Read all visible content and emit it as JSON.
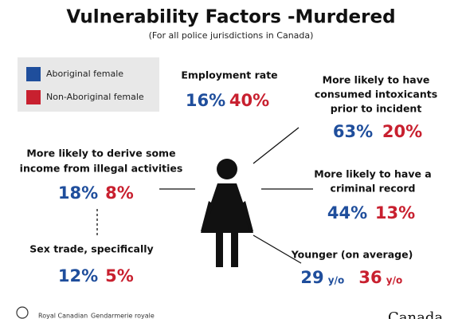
{
  "header": {
    "title": "Vulnerability Factors -Murdered",
    "subtitle": "(For all police jurisdictions in Canada)"
  },
  "legend": [
    {
      "label": "Aboriginal female",
      "color": "#1f4e9c"
    },
    {
      "label": "Non-Aboriginal female",
      "color": "#c8202f"
    }
  ],
  "factors": [
    {
      "label": [
        "Employment rate"
      ],
      "aboriginal": "16%",
      "non_aboriginal": "40%"
    },
    {
      "label": [
        "More likely to have",
        "consumed intoxicants",
        "prior to incident"
      ],
      "aboriginal": "63%",
      "non_aboriginal": "20%"
    },
    {
      "label": [
        "More likely to derive some",
        "income from illegal activities"
      ],
      "aboriginal": "18%",
      "non_aboriginal": "8%"
    },
    {
      "label": [
        "More likely to have a",
        "criminal record"
      ],
      "aboriginal": "44%",
      "non_aboriginal": "13%"
    },
    {
      "label": [
        "Sex trade, specifically"
      ],
      "aboriginal": "12%",
      "non_aboriginal": "5%"
    },
    {
      "label": [
        "Younger (on average)"
      ],
      "aboriginal": "29",
      "non_aboriginal": "36",
      "unit": "y/o"
    }
  ],
  "footer": {
    "agency_en": "Royal Canadian",
    "agency_fr": "Gendarmerie royale",
    "wordmark": "Canada"
  }
}
